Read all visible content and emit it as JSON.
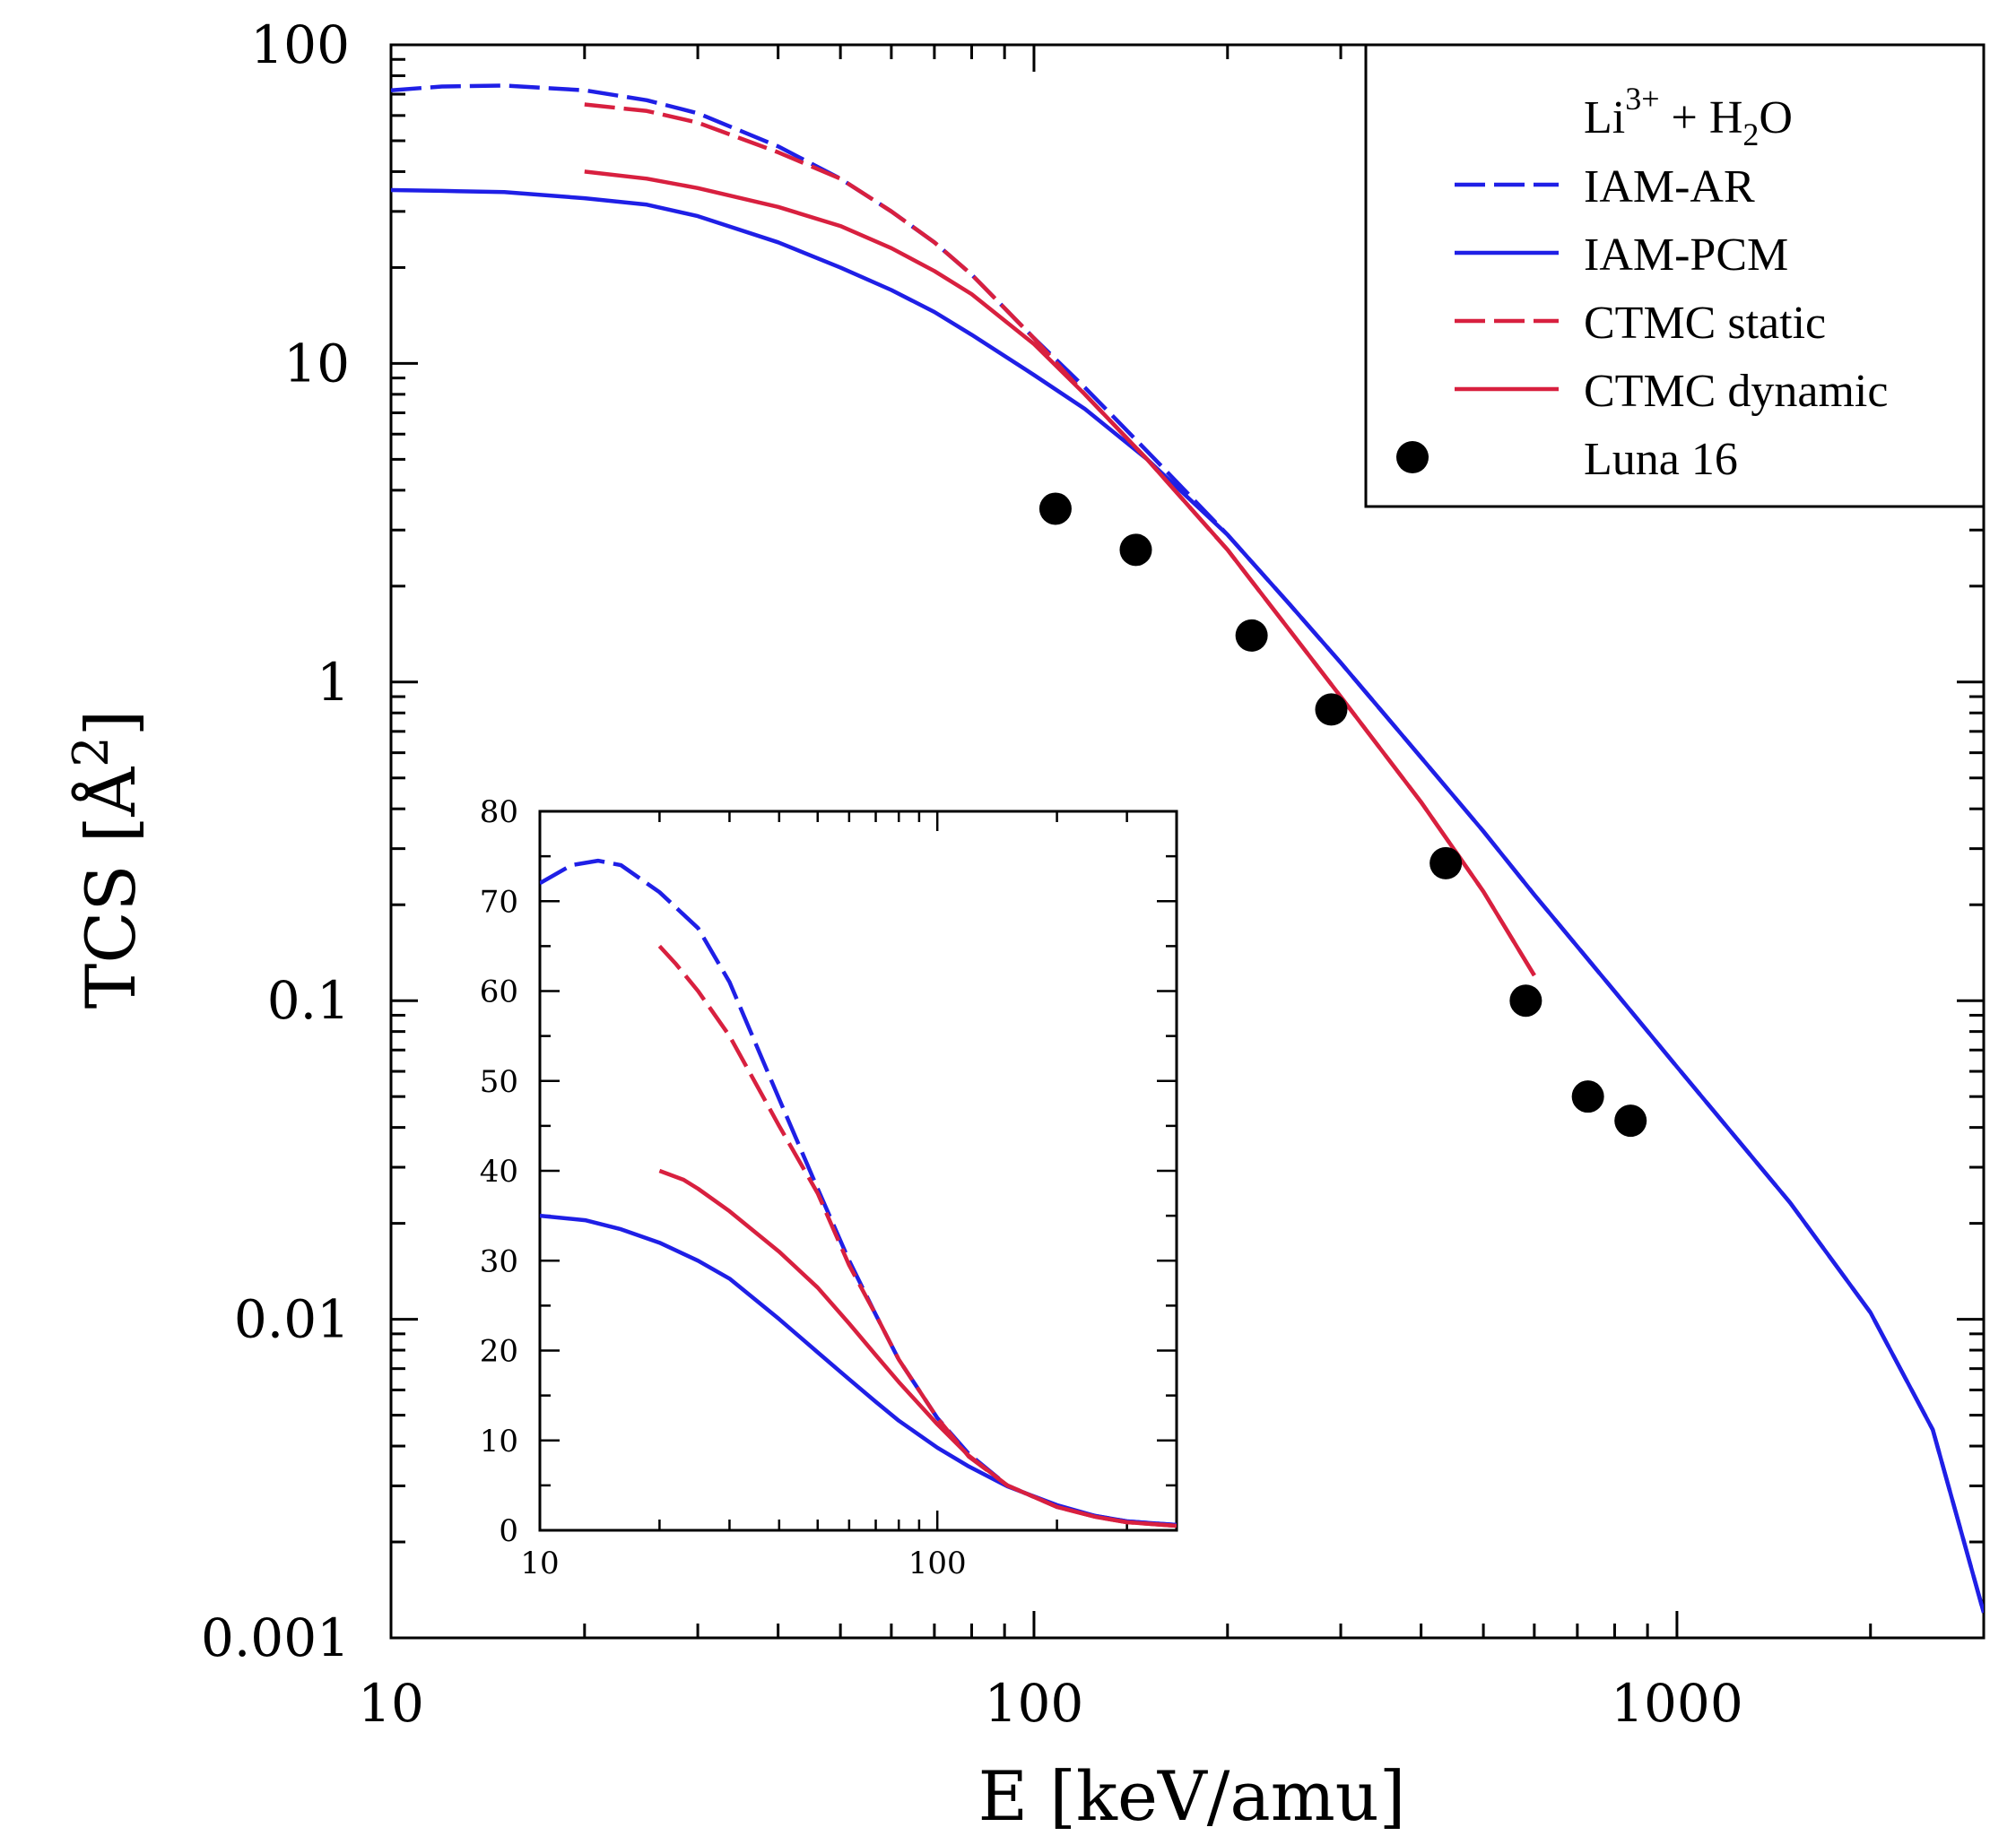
{
  "colors": {
    "blue": "#1f1fe6",
    "red": "#d8203f",
    "black": "#000000"
  },
  "chart_data": [
    {
      "type": "line",
      "role": "main",
      "xlabel": "E [keV/amu]",
      "ylabel": "TCS [Å²]",
      "ylabel_base": "TCS [",
      "ylabel_unit": "Å",
      "ylabel_exp": "2",
      "ylabel_close": "]",
      "xscale": "log",
      "yscale": "log",
      "xlim": [
        10,
        3000
      ],
      "ylim": [
        0.001,
        100
      ],
      "xticks": [
        10,
        100,
        1000
      ],
      "xtick_labels": [
        "10",
        "100",
        "1000"
      ],
      "yticks": [
        0.001,
        0.01,
        0.1,
        1,
        10,
        100
      ],
      "ytick_labels": [
        "0.001",
        "0.01",
        "0.1",
        "1",
        "10",
        "100"
      ],
      "grid": false,
      "legend_position": "top-right",
      "legend_title": {
        "base": "Li",
        "sup": "3+",
        "mid": " + H",
        "sub": "2",
        "end": "O"
      },
      "series": [
        {
          "name": "IAM-AR",
          "style": "dashed",
          "color": "blue",
          "points": [
            [
              10,
              72
            ],
            [
              12,
              74
            ],
            [
              15,
              74.5
            ],
            [
              20,
              72
            ],
            [
              25,
              67
            ],
            [
              30,
              61
            ],
            [
              40,
              48
            ],
            [
              50,
              38
            ],
            [
              60,
              30
            ],
            [
              70,
              24
            ],
            [
              80,
              19
            ],
            [
              100,
              12
            ],
            [
              120,
              8.4
            ],
            [
              150,
              5.3
            ],
            [
              200,
              2.9
            ],
            [
              250,
              1.75
            ],
            [
              300,
              1.15
            ],
            [
              400,
              0.58
            ],
            [
              500,
              0.34
            ],
            [
              600,
              0.215
            ],
            [
              800,
              0.107
            ],
            [
              1000,
              0.062
            ],
            [
              1500,
              0.0232
            ],
            [
              2000,
              0.0105
            ],
            [
              2500,
              0.0045
            ],
            [
              3000,
              0.0012
            ]
          ]
        },
        {
          "name": "IAM-PCM",
          "style": "solid",
          "color": "blue",
          "points": [
            [
              10,
              35
            ],
            [
              12,
              34.8
            ],
            [
              15,
              34.5
            ],
            [
              20,
              33
            ],
            [
              25,
              31.5
            ],
            [
              30,
              29
            ],
            [
              40,
              24
            ],
            [
              50,
              20
            ],
            [
              60,
              17
            ],
            [
              70,
              14.5
            ],
            [
              80,
              12.3
            ],
            [
              100,
              9.2
            ],
            [
              120,
              7.2
            ],
            [
              150,
              5
            ],
            [
              200,
              2.9
            ],
            [
              250,
              1.75
            ],
            [
              300,
              1.15
            ],
            [
              400,
              0.58
            ],
            [
              500,
              0.34
            ],
            [
              600,
              0.215
            ],
            [
              800,
              0.107
            ],
            [
              1000,
              0.062
            ],
            [
              1500,
              0.0232
            ],
            [
              2000,
              0.0105
            ],
            [
              2500,
              0.0045
            ],
            [
              3000,
              0.0012
            ]
          ]
        },
        {
          "name": "CTMC static",
          "style": "dashed",
          "color": "red",
          "points": [
            [
              20,
              65
            ],
            [
              25,
              62
            ],
            [
              30,
              57
            ],
            [
              40,
              46
            ],
            [
              50,
              38
            ],
            [
              60,
              30
            ],
            [
              70,
              24
            ],
            [
              80,
              19
            ],
            [
              100,
              12
            ],
            [
              120,
              8
            ],
            [
              150,
              5
            ],
            [
              200,
              2.6
            ],
            [
              250,
              1.45
            ],
            [
              300,
              0.9
            ],
            [
              400,
              0.42
            ],
            [
              500,
              0.22
            ],
            [
              600,
              0.12
            ]
          ]
        },
        {
          "name": "CTMC dynamic",
          "style": "solid",
          "color": "red",
          "points": [
            [
              20,
              40
            ],
            [
              25,
              38
            ],
            [
              30,
              35.5
            ],
            [
              40,
              31
            ],
            [
              50,
              27
            ],
            [
              60,
              23
            ],
            [
              70,
              19.5
            ],
            [
              80,
              16.5
            ],
            [
              100,
              11.5
            ],
            [
              120,
              8
            ],
            [
              150,
              5
            ],
            [
              200,
              2.6
            ],
            [
              250,
              1.45
            ],
            [
              300,
              0.9
            ],
            [
              400,
              0.42
            ],
            [
              500,
              0.22
            ],
            [
              600,
              0.12
            ]
          ]
        },
        {
          "name": "Luna 16",
          "style": "markers",
          "color": "black",
          "points": [
            [
              108,
              3.5
            ],
            [
              144,
              2.6
            ],
            [
              218,
              1.4
            ],
            [
              290,
              0.82
            ],
            [
              437,
              0.27
            ],
            [
              582,
              0.1
            ],
            [
              727,
              0.05
            ],
            [
              847,
              0.042
            ]
          ]
        }
      ]
    },
    {
      "type": "line",
      "role": "inset",
      "xscale": "log",
      "yscale": "linear",
      "xlim": [
        10,
        400
      ],
      "ylim": [
        0,
        80
      ],
      "xticks": [
        10,
        100
      ],
      "xtick_labels": [
        "10",
        "100"
      ],
      "yticks": [
        0,
        10,
        20,
        30,
        40,
        50,
        60,
        70,
        80
      ],
      "ytick_labels": [
        "0",
        "10",
        "20",
        "30",
        "40",
        "50",
        "60",
        "70",
        "80"
      ],
      "grid": false,
      "series": [
        {
          "name": "IAM-AR",
          "style": "dashed",
          "color": "blue",
          "points": [
            [
              10,
              72
            ],
            [
              12,
              74
            ],
            [
              14,
              74.5
            ],
            [
              16,
              74
            ],
            [
              20,
              71
            ],
            [
              25,
              67
            ],
            [
              30,
              61
            ],
            [
              40,
              48
            ],
            [
              50,
              38
            ],
            [
              60,
              30
            ],
            [
              70,
              24
            ],
            [
              80,
              19
            ],
            [
              100,
              12.5
            ],
            [
              120,
              8.5
            ],
            [
              150,
              5
            ],
            [
              200,
              2.6
            ],
            [
              250,
              1.6
            ],
            [
              300,
              1
            ],
            [
              400,
              0.6
            ]
          ]
        },
        {
          "name": "IAM-PCM",
          "style": "solid",
          "color": "blue",
          "points": [
            [
              10,
              35
            ],
            [
              13,
              34.5
            ],
            [
              16,
              33.5
            ],
            [
              20,
              32
            ],
            [
              25,
              30
            ],
            [
              30,
              28
            ],
            [
              40,
              23.5
            ],
            [
              50,
              19.8
            ],
            [
              60,
              16.8
            ],
            [
              70,
              14.3
            ],
            [
              80,
              12.2
            ],
            [
              100,
              9.2
            ],
            [
              120,
              7.1
            ],
            [
              150,
              4.9
            ],
            [
              200,
              2.8
            ],
            [
              250,
              1.6
            ],
            [
              300,
              1
            ],
            [
              400,
              0.6
            ]
          ]
        },
        {
          "name": "CTMC static",
          "style": "dashed",
          "color": "red",
          "points": [
            [
              20,
              65
            ],
            [
              22,
              63
            ],
            [
              25,
              60
            ],
            [
              30,
              55
            ],
            [
              40,
              45
            ],
            [
              50,
              37.5
            ],
            [
              60,
              29.5
            ],
            [
              70,
              24
            ],
            [
              80,
              19
            ],
            [
              100,
              12.5
            ],
            [
              120,
              8.2
            ],
            [
              150,
              5
            ],
            [
              200,
              2.6
            ],
            [
              250,
              1.5
            ],
            [
              300,
              0.9
            ],
            [
              400,
              0.5
            ]
          ]
        },
        {
          "name": "CTMC dynamic",
          "style": "solid",
          "color": "red",
          "points": [
            [
              20,
              40
            ],
            [
              23,
              39
            ],
            [
              25,
              38
            ],
            [
              30,
              35.5
            ],
            [
              40,
              31
            ],
            [
              50,
              27
            ],
            [
              60,
              23
            ],
            [
              70,
              19.5
            ],
            [
              80,
              16.5
            ],
            [
              100,
              11.8
            ],
            [
              120,
              8.3
            ],
            [
              150,
              5
            ],
            [
              200,
              2.6
            ],
            [
              250,
              1.5
            ],
            [
              300,
              0.9
            ],
            [
              400,
              0.5
            ]
          ]
        }
      ]
    }
  ]
}
